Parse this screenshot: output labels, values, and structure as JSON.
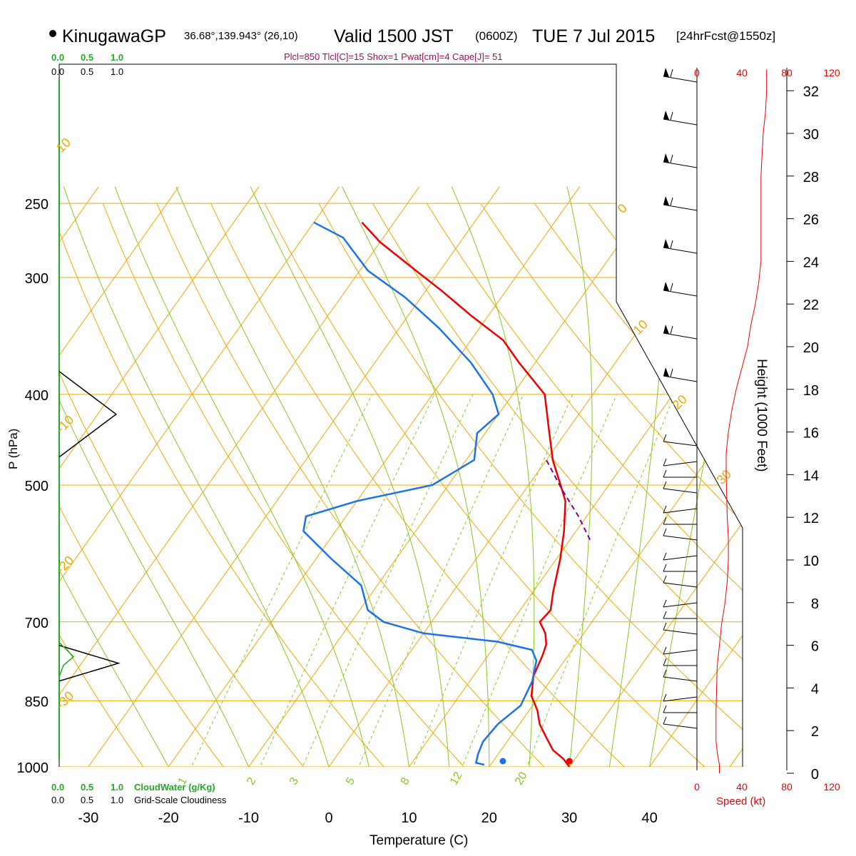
{
  "header": {
    "station": "KinugawaGP",
    "coords": "36.68°,139.943° (26,10)",
    "valid": "Valid 1500 JST",
    "zulu": "(0600Z)",
    "date": "TUE 7 Jul 2015",
    "fcst": "[24hrFcst@1550z]",
    "indices": "Plcl=850 Tlcl[C]=15 Shox=1 Pwat[cm]=4 Cape[J]= 51"
  },
  "colors": {
    "temperature": "#ee0000",
    "dewpoint": "#1a73e8",
    "parcel": "#800080",
    "isotherm_isobar": "#f0a800",
    "adiabat": "#88c820",
    "mixing_ratio": "#88c820",
    "cloud_water": "#22aa22",
    "wind_speed": "#ee0000",
    "indices_text": "#a0105a"
  },
  "left_panel": {
    "cloud_water_ticks": [
      "0.0",
      "0.5",
      "1.0"
    ],
    "cloudiness_ticks": [
      "0.0",
      "0.5",
      "1.0"
    ],
    "cloud_water_label": "CloudWater (g/Kg)",
    "cloudiness_label": "Grid-Scale Cloudiness"
  },
  "right_panel": {
    "speed_ticks": [
      "0",
      "40",
      "80",
      "120"
    ],
    "speed_label": "Speed (kt)",
    "height_label": "Height (1000 Feet)",
    "height_ticks": [
      "0",
      "2",
      "4",
      "6",
      "8",
      "10",
      "12",
      "14",
      "16",
      "18",
      "20",
      "22",
      "24",
      "26",
      "28",
      "30",
      "32"
    ]
  },
  "chart_data": {
    "type": "line",
    "title": "KinugawaGP Valid 1500 JST TUE 7 Jul 2015",
    "xlabel": "Temperature (C)",
    "ylabel": "P (hPa)",
    "x_ticks": [
      "-30",
      "-20",
      "-10",
      "0",
      "10",
      "20",
      "30",
      "40"
    ],
    "pressure_ticks": [
      "250",
      "300",
      "400",
      "500",
      "700",
      "850",
      "1000"
    ],
    "mixing_ratio_labels": [
      "1",
      "2",
      "3",
      "5",
      "8",
      "12",
      "20"
    ],
    "isotherm_labels": [
      "10",
      "-10",
      "-20",
      "-30",
      "0",
      "10",
      "20",
      "30"
    ],
    "series": [
      {
        "name": "Temperature",
        "points": [
          [
            30.0,
            1000
          ],
          [
            28.5,
            980
          ],
          [
            26.5,
            960
          ],
          [
            24.5,
            930
          ],
          [
            22.5,
            900
          ],
          [
            21.0,
            870
          ],
          [
            19.0,
            840
          ],
          [
            17.5,
            800
          ],
          [
            16.8,
            760
          ],
          [
            16.3,
            740
          ],
          [
            15.2,
            720
          ],
          [
            13.5,
            700
          ],
          [
            13.8,
            680
          ],
          [
            12.5,
            650
          ],
          [
            10.5,
            600
          ],
          [
            8.5,
            560
          ],
          [
            6.0,
            520
          ],
          [
            4.0,
            500
          ],
          [
            0.8,
            470
          ],
          [
            -2.0,
            440
          ],
          [
            -6.0,
            400
          ],
          [
            -12.0,
            370
          ],
          [
            -16.0,
            350
          ],
          [
            -22.0,
            330
          ],
          [
            -28.0,
            310
          ],
          [
            -33.0,
            295
          ],
          [
            -40.0,
            275
          ],
          [
            -44.0,
            262
          ]
        ]
      },
      {
        "name": "Dewpoint",
        "points": [
          [
            19.2,
            995
          ],
          [
            18.0,
            990
          ],
          [
            17.5,
            970
          ],
          [
            17.0,
            940
          ],
          [
            17.3,
            900
          ],
          [
            18.5,
            860
          ],
          [
            17.8,
            810
          ],
          [
            16.5,
            770
          ],
          [
            15.0,
            750
          ],
          [
            10.0,
            735
          ],
          [
            0.0,
            720
          ],
          [
            -6.0,
            700
          ],
          [
            -9.0,
            680
          ],
          [
            -12.0,
            640
          ],
          [
            -18.0,
            600
          ],
          [
            -24.0,
            560
          ],
          [
            -25.0,
            540
          ],
          [
            -20.0,
            520
          ],
          [
            -12.0,
            500
          ],
          [
            -9.0,
            470
          ],
          [
            -11.0,
            440
          ],
          [
            -10.0,
            420
          ],
          [
            -12.5,
            400
          ],
          [
            -18.0,
            370
          ],
          [
            -25.0,
            340
          ],
          [
            -32.0,
            315
          ],
          [
            -39.0,
            295
          ],
          [
            -45.0,
            272
          ],
          [
            -50.0,
            262
          ]
        ]
      },
      {
        "name": "Parcel",
        "style": "dashed",
        "points": [
          [
            12.5,
            572
          ],
          [
            9.0,
            540
          ],
          [
            4.5,
            505
          ],
          [
            0.0,
            470
          ]
        ]
      }
    ],
    "surface_markers": [
      {
        "name": "Surface temperature",
        "value": 30.0,
        "p": 1000
      },
      {
        "name": "Surface dewpoint",
        "value": 21.7,
        "p": 1000
      }
    ],
    "cloud_water_gkg": [
      {
        "p": 760,
        "value": 0.12
      }
    ],
    "cloudiness": [
      {
        "p": 420,
        "value": 0.95
      },
      {
        "p": 775,
        "value": 0.99
      }
    ],
    "wind_speed_profile_kt": [
      [
        20,
        0.0
      ],
      [
        20,
        0.4
      ],
      [
        18,
        1.0
      ],
      [
        17,
        1.5
      ],
      [
        17,
        3.0
      ],
      [
        18,
        5.0
      ],
      [
        22,
        7.0
      ],
      [
        25,
        8.0
      ],
      [
        27,
        9.0
      ],
      [
        28,
        10.0
      ],
      [
        28,
        11.0
      ],
      [
        27,
        12.0
      ],
      [
        26,
        14.0
      ],
      [
        26,
        15.0
      ],
      [
        28,
        16.0
      ],
      [
        31,
        17.0
      ],
      [
        35,
        18.0
      ],
      [
        40,
        19.0
      ],
      [
        45,
        20.0
      ],
      [
        48,
        21.0
      ],
      [
        52,
        22.0
      ],
      [
        55,
        23.0
      ],
      [
        57,
        24.0
      ],
      [
        57,
        25.5
      ],
      [
        57,
        27.0
      ],
      [
        57,
        28.0
      ],
      [
        58,
        29.0
      ],
      [
        59,
        30.0
      ],
      [
        61,
        31.0
      ],
      [
        62,
        32.0
      ],
      [
        62,
        33.0
      ]
    ]
  }
}
